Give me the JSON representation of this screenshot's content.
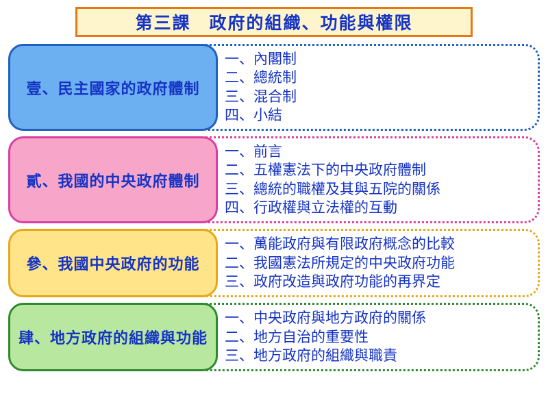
{
  "title": {
    "text": "第三課　政府的組織、功能與權限",
    "bg_color": "#fff5cc",
    "border_color": "#e67817",
    "text_color": "#1533c4"
  },
  "sections": [
    {
      "label": "壹、民主國家的政府體制",
      "label_bg": "#6db0f2",
      "label_border": "#2060c0",
      "label_text": "#1533c4",
      "content_border": "#2060c0",
      "content_text": "#1533c4",
      "items": [
        "一、內閣制",
        "二、總統制",
        "三、混合制",
        "四、小結"
      ]
    },
    {
      "label": "貳、我國的中央政府體制",
      "label_bg": "#f7a6c9",
      "label_border": "#d93fa0",
      "label_text": "#1533c4",
      "content_border": "#d93fa0",
      "content_text": "#1533c4",
      "items": [
        "一、前言",
        "二、五權憲法下的中央政府體制",
        "三、總統的職權及其與五院的關係",
        "四、行政權與立法權的互動"
      ]
    },
    {
      "label": "參、我國中央政府的功能",
      "label_bg": "#ffe48a",
      "label_border": "#e6a817",
      "label_text": "#1533c4",
      "content_border": "#e6a817",
      "content_text": "#1533c4",
      "items": [
        "一、萬能政府與有限政府概念的比較",
        "二、我國憲法所規定的中央政府功能",
        "三、政府改造與政府功能的再界定"
      ]
    },
    {
      "label": "肆、地方政府的組織與功能",
      "label_bg": "#b8e8a0",
      "label_border": "#2f8a2f",
      "label_text": "#1533c4",
      "content_border": "#2f8a2f",
      "content_text": "#1533c4",
      "items": [
        "一、中央政府與地方政府的關係",
        "二、地方自治的重要性",
        "三、地方政府的組織與職責"
      ]
    }
  ]
}
